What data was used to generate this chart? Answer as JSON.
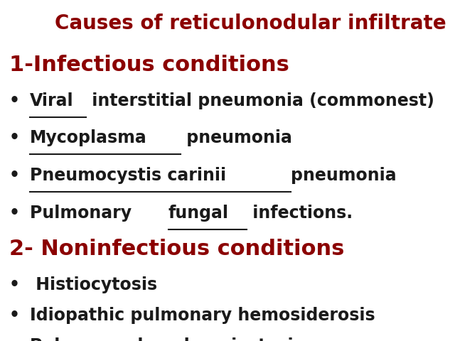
{
  "title": "Causes of reticulonodular infiltrate",
  "title_color": "#8B0000",
  "title_fontsize": 20,
  "background_color": "#ffffff",
  "section1_label": "1-Infectious conditions",
  "section1_color": "#8B0000",
  "section1_fontsize": 22,
  "section2_label": "2- Noninfectious conditions",
  "section2_color": "#8B0000",
  "section2_fontsize": 22,
  "bullet_color": "#1a1a1a",
  "bullet_fontsize": 17,
  "bullet_symbol": "•"
}
